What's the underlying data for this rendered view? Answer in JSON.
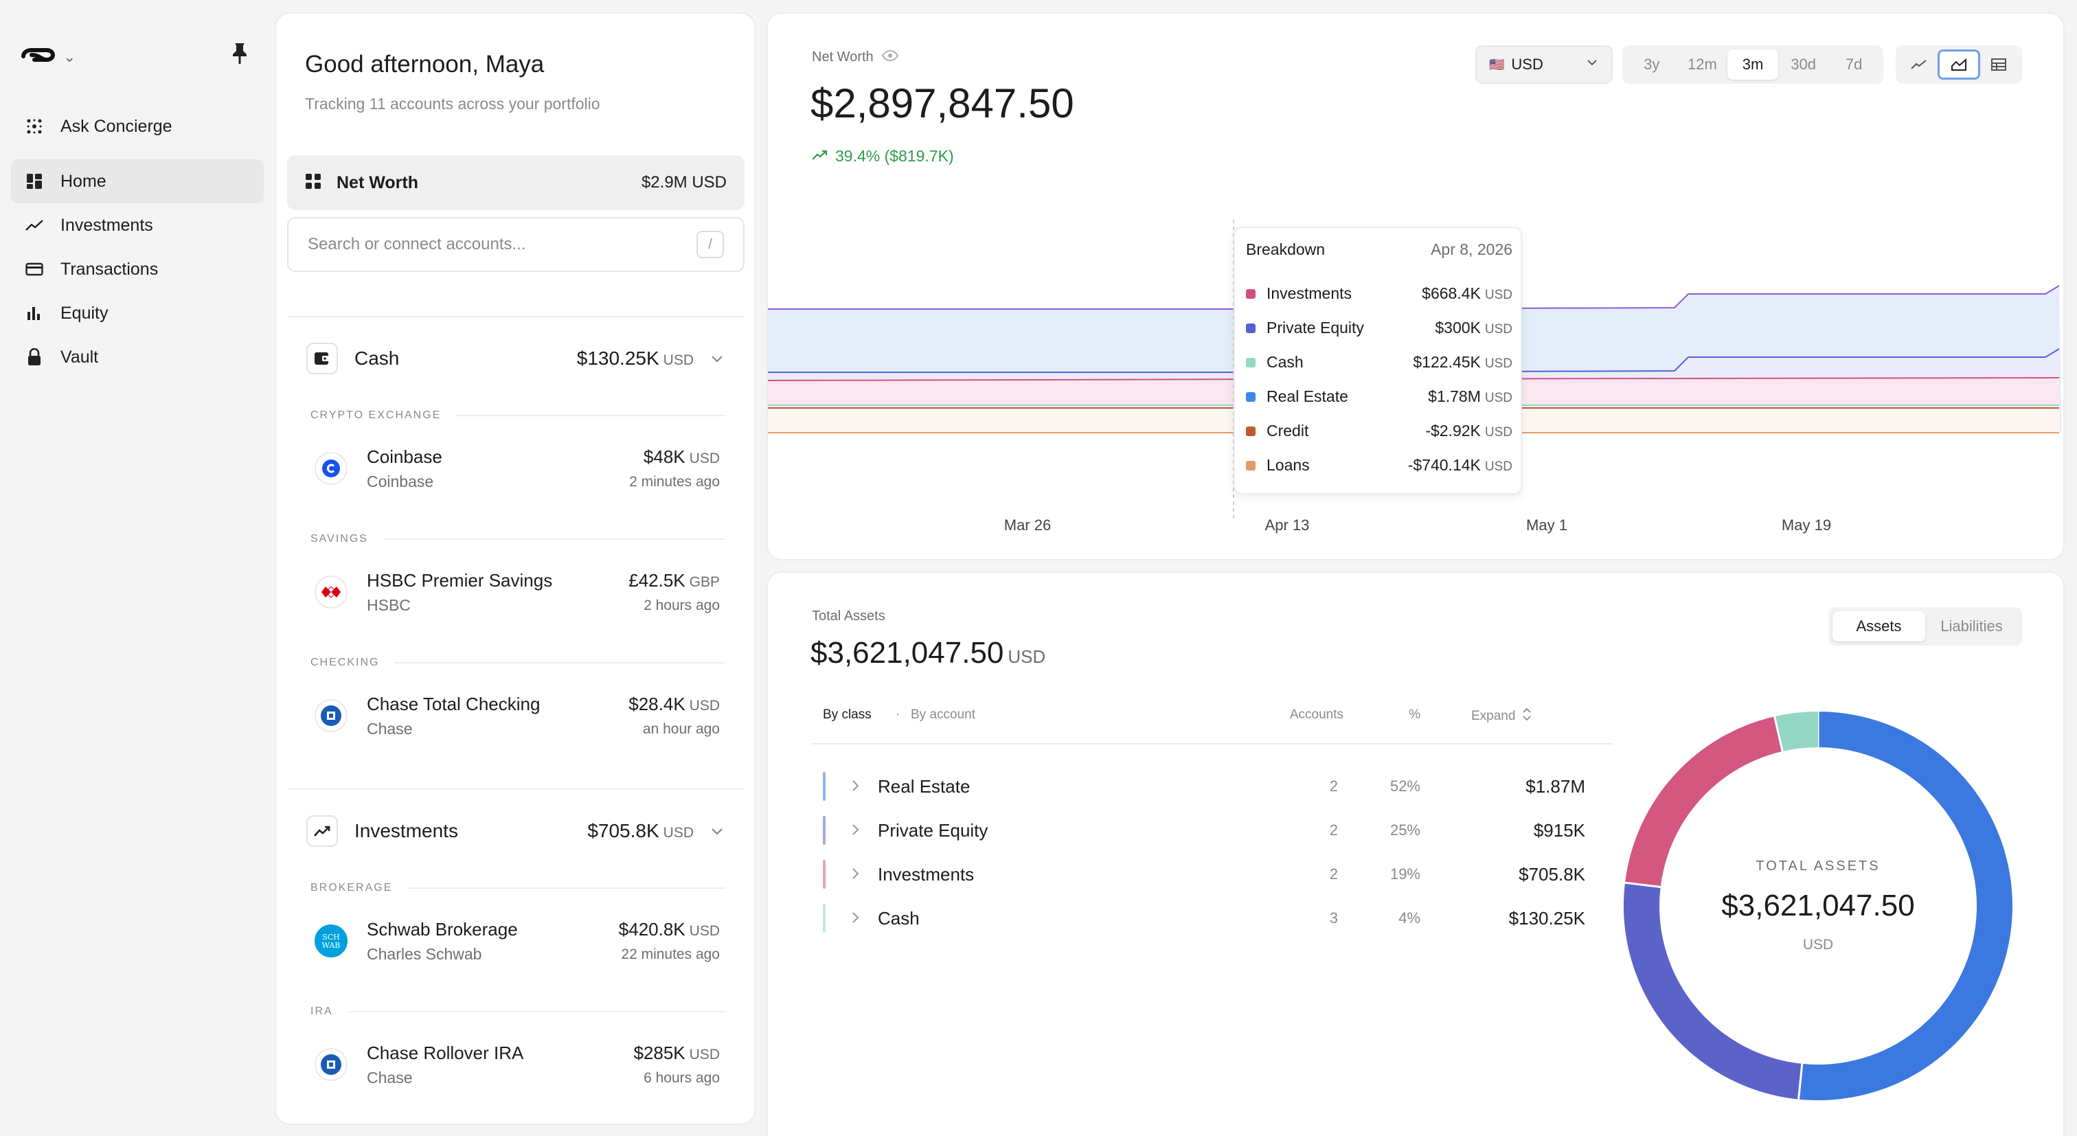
{
  "nav": {
    "items": [
      {
        "label": "Ask Concierge"
      },
      {
        "label": "Home"
      },
      {
        "label": "Investments"
      },
      {
        "label": "Transactions"
      },
      {
        "label": "Equity"
      },
      {
        "label": "Vault"
      }
    ],
    "active": "Home"
  },
  "accounts": {
    "greeting": "Good afternoon, Maya",
    "subtitle": "Tracking 11 accounts across your portfolio",
    "net_worth": {
      "label": "Net Worth",
      "value": "$2.9M USD"
    },
    "search": {
      "placeholder": "Search or connect accounts...",
      "shortcut": "/"
    },
    "groups": [
      {
        "name": "Cash",
        "value": "$130.25K",
        "currency": "USD",
        "sections": [
          {
            "label": "CRYPTO EXCHANGE",
            "accounts": [
              {
                "name": "Coinbase",
                "institution": "Coinbase",
                "value": "$48K",
                "currency": "USD",
                "updated": "2 minutes ago"
              }
            ]
          },
          {
            "label": "SAVINGS",
            "accounts": [
              {
                "name": "HSBC Premier Savings",
                "institution": "HSBC",
                "value": "£42.5K",
                "currency": "GBP",
                "updated": "2 hours ago"
              }
            ]
          },
          {
            "label": "CHECKING",
            "accounts": [
              {
                "name": "Chase Total Checking",
                "institution": "Chase",
                "value": "$28.4K",
                "currency": "USD",
                "updated": "an hour ago"
              }
            ]
          }
        ]
      },
      {
        "name": "Investments",
        "value": "$705.8K",
        "currency": "USD",
        "sections": [
          {
            "label": "BROKERAGE",
            "accounts": [
              {
                "name": "Schwab Brokerage",
                "institution": "Charles Schwab",
                "value": "$420.8K",
                "currency": "USD",
                "updated": "22 minutes ago",
                "logo_text": "SCH WAB"
              }
            ]
          },
          {
            "label": "IRA",
            "accounts": [
              {
                "name": "Chase Rollover IRA",
                "institution": "Chase",
                "value": "$285K",
                "currency": "USD",
                "updated": "6 hours ago"
              }
            ]
          }
        ]
      }
    ]
  },
  "net_worth_panel": {
    "label": "Net Worth",
    "value": "$2,897,847.50",
    "change": "39.4% ($819.7K)",
    "currency_select": {
      "flag": "🇺🇸",
      "value": "USD"
    },
    "ranges": [
      "3y",
      "12m",
      "3m",
      "30d",
      "7d"
    ],
    "active_range": "3m",
    "view_modes": [
      "line-view",
      "area-view",
      "table-view"
    ],
    "active_view": "area-view",
    "tooltip": {
      "title": "Breakdown",
      "date": "Apr 8, 2026",
      "rows": [
        {
          "name": "Investments",
          "value": "$668.4K",
          "currency": "USD",
          "color": "#d44f86"
        },
        {
          "name": "Private Equity",
          "value": "$300K",
          "currency": "USD",
          "color": "#5461d6"
        },
        {
          "name": "Cash",
          "value": "$122.45K",
          "currency": "USD",
          "color": "#8fdcc4"
        },
        {
          "name": "Real Estate",
          "value": "$1.78M",
          "currency": "USD",
          "color": "#3b8ae8"
        },
        {
          "name": "Credit",
          "value": "-$2.92K",
          "currency": "USD",
          "color": "#c5572b"
        },
        {
          "name": "Loans",
          "value": "-$740.14K",
          "currency": "USD",
          "color": "#e39a66"
        }
      ]
    }
  },
  "chart_data": {
    "type": "area",
    "title": "Net Worth",
    "x_ticks": [
      "Mar 26",
      "Apr 13",
      "May 1",
      "May 19"
    ],
    "stacked": true,
    "grid": false,
    "hover_date": "Apr 8, 2026",
    "series": [
      {
        "name": "Credit",
        "color": "#c5572b"
      },
      {
        "name": "Loans",
        "color": "#e39a66"
      },
      {
        "name": "Cash",
        "color": "#8fdcc4"
      },
      {
        "name": "Investments",
        "color": "#d44f86"
      },
      {
        "name": "Private Equity",
        "color": "#5461d6"
      },
      {
        "name": "Real Estate",
        "color": "#8b5cd6"
      }
    ]
  },
  "assets_panel": {
    "label": "Total Assets",
    "value": "$3,621,047.50",
    "currency": "USD",
    "toggle": [
      "Assets",
      "Liabilities"
    ],
    "active_toggle": "Assets",
    "view_by": [
      "By class",
      "By account"
    ],
    "active_view_by": "By class",
    "columns": {
      "accounts": "Accounts",
      "pct": "%",
      "expand": "Expand"
    },
    "rows": [
      {
        "name": "Real Estate",
        "accounts": "2",
        "pct": "52%",
        "amount": "$1.87M",
        "color": "#3b79e0"
      },
      {
        "name": "Private Equity",
        "accounts": "2",
        "pct": "25%",
        "amount": "$915K",
        "color": "#5b63c9"
      },
      {
        "name": "Investments",
        "accounts": "2",
        "pct": "19%",
        "amount": "$705.8K",
        "color": "#d3577f"
      },
      {
        "name": "Cash",
        "accounts": "3",
        "pct": "4%",
        "amount": "$130.25K",
        "color": "#93d6c3"
      }
    ],
    "donut": {
      "label": "TOTAL ASSETS",
      "value": "$3,621,047.50",
      "currency": "USD",
      "slices": [
        {
          "name": "Real Estate",
          "fraction": 0.516,
          "color": "#3b79e0"
        },
        {
          "name": "Private Equity",
          "fraction": 0.253,
          "color": "#5b63c9"
        },
        {
          "name": "Investments",
          "fraction": 0.195,
          "color": "#d3577f"
        },
        {
          "name": "Cash",
          "fraction": 0.036,
          "color": "#93d6c3"
        }
      ]
    }
  }
}
